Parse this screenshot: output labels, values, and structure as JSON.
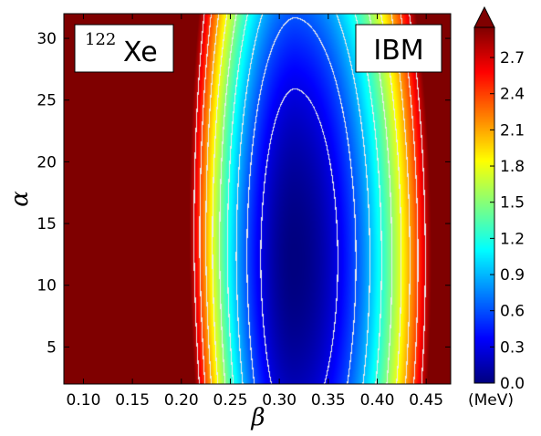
{
  "chart_data": {
    "type": "heatmap",
    "annotations": {
      "nucleus_mass_number": "122",
      "nucleus_symbol": "Xe",
      "model": "IBM"
    },
    "xlabel": "β",
    "ylabel": "α",
    "xlim": [
      0.08,
      0.475
    ],
    "ylim": [
      2,
      32
    ],
    "x_ticks": [
      "0.10",
      "0.15",
      "0.20",
      "0.25",
      "0.30",
      "0.35",
      "0.40",
      "0.45"
    ],
    "x_tick_values": [
      0.1,
      0.15,
      0.2,
      0.25,
      0.3,
      0.35,
      0.4,
      0.45
    ],
    "y_ticks": [
      "5",
      "10",
      "15",
      "20",
      "25",
      "30"
    ],
    "y_tick_values": [
      5,
      10,
      15,
      20,
      25,
      30
    ],
    "colorbar": {
      "unit": "(MeV)",
      "range": [
        0.0,
        2.95
      ],
      "ticks": [
        "0.0",
        "0.3",
        "0.6",
        "0.9",
        "1.2",
        "1.5",
        "1.8",
        "2.1",
        "2.4",
        "2.7"
      ],
      "tick_values": [
        0.0,
        0.3,
        0.6,
        0.9,
        1.2,
        1.5,
        1.8,
        2.1,
        2.4,
        2.7
      ],
      "extend": "max",
      "colormap": "jet"
    },
    "surface": {
      "minimum": {
        "beta": 0.315,
        "alpha": 12.0,
        "value": 0.0
      },
      "contour_step": 0.3,
      "contour_color": "#ffffff"
    },
    "grid": false,
    "legend": "none"
  }
}
